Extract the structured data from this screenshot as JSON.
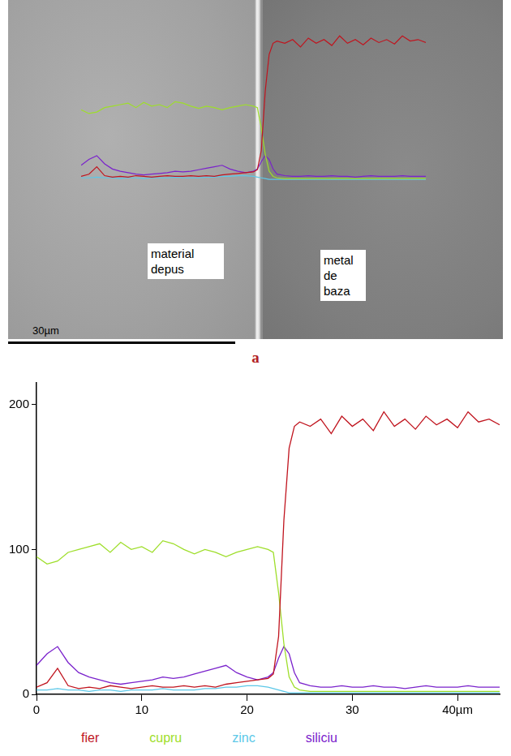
{
  "image": {
    "left_label": "material depus",
    "right_label": "metal de baza",
    "scale_bar": "30µm",
    "panel": "a"
  },
  "chart_data": {
    "type": "line",
    "x": [
      0,
      1,
      2,
      3,
      4,
      5,
      6,
      7,
      8,
      9,
      10,
      11,
      12,
      13,
      14,
      15,
      16,
      17,
      18,
      19,
      20,
      21,
      22,
      22.5,
      23,
      23.5,
      24,
      24.5,
      25,
      26,
      27,
      28,
      29,
      30,
      31,
      32,
      33,
      34,
      35,
      36,
      37,
      38,
      39,
      40,
      41,
      42,
      43,
      44
    ],
    "series": [
      {
        "name": "fier",
        "color": "#c0141e",
        "values": [
          5,
          8,
          18,
          6,
          4,
          5,
          4,
          6,
          5,
          4,
          5,
          6,
          5,
          5,
          6,
          5,
          6,
          5,
          7,
          8,
          9,
          10,
          11,
          14,
          40,
          120,
          170,
          185,
          188,
          185,
          190,
          180,
          192,
          185,
          190,
          182,
          195,
          185,
          190,
          183,
          192,
          186,
          190,
          184,
          195,
          188,
          190,
          186
        ]
      },
      {
        "name": "cupru",
        "color": "#9ede2a",
        "values": [
          95,
          90,
          92,
          98,
          100,
          102,
          104,
          98,
          105,
          100,
          102,
          98,
          106,
          104,
          100,
          97,
          100,
          98,
          95,
          98,
          100,
          102,
          100,
          98,
          70,
          35,
          12,
          5,
          3,
          2,
          2,
          2,
          2,
          2,
          2,
          2,
          2,
          2,
          2,
          2,
          2,
          2,
          2,
          2,
          2,
          2,
          2,
          2
        ]
      },
      {
        "name": "zinc",
        "color": "#5cc8e8",
        "values": [
          3,
          3,
          4,
          3,
          3,
          2,
          3,
          3,
          2,
          3,
          3,
          3,
          4,
          3,
          3,
          3,
          4,
          4,
          5,
          5,
          6,
          6,
          5,
          4,
          3,
          2,
          1,
          1,
          1,
          1,
          1,
          1,
          1,
          1,
          1,
          1,
          1,
          1,
          1,
          1,
          1,
          1,
          1,
          1,
          1,
          1,
          1,
          1
        ]
      },
      {
        "name": "siliciu",
        "color": "#7a22cc",
        "values": [
          20,
          28,
          33,
          22,
          15,
          12,
          10,
          8,
          7,
          8,
          9,
          10,
          12,
          11,
          12,
          14,
          16,
          18,
          20,
          15,
          12,
          10,
          12,
          15,
          25,
          33,
          28,
          15,
          8,
          6,
          5,
          5,
          6,
          5,
          5,
          6,
          5,
          5,
          4,
          5,
          6,
          5,
          5,
          5,
          6,
          5,
          5,
          5
        ]
      }
    ],
    "xlim": [
      0,
      44
    ],
    "ylim": [
      0,
      215
    ],
    "xticks": [
      0,
      10,
      20,
      30,
      {
        "value": 40,
        "label": "40µm"
      }
    ],
    "yticks": [
      0,
      100,
      200
    ],
    "grid": false,
    "legend": "bottom"
  }
}
